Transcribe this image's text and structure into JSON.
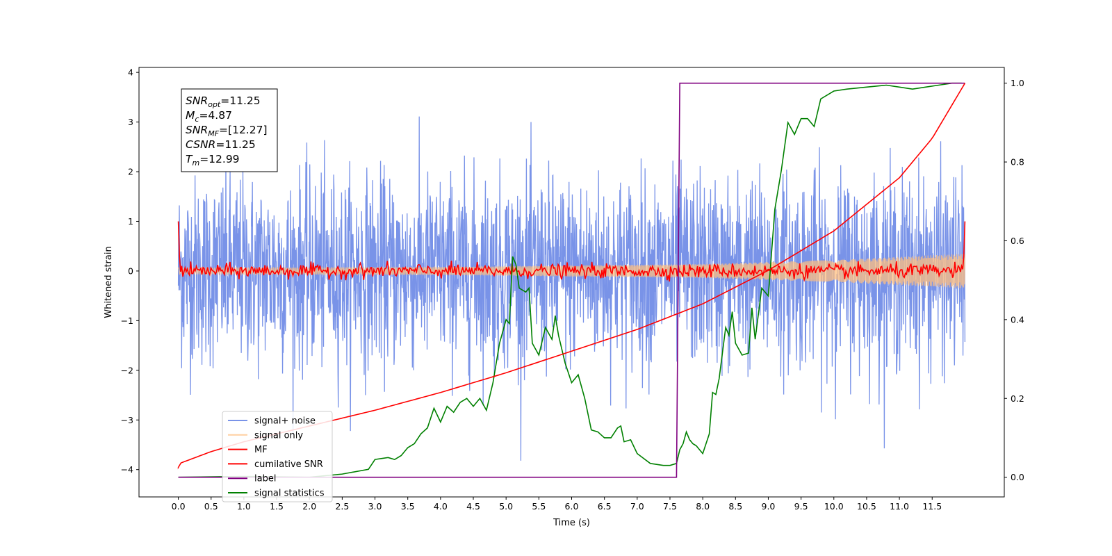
{
  "chart_data": {
    "type": "line",
    "xlabel": "Time (s)",
    "ylabel": "Whitened strain",
    "xlim": [
      -0.6,
      12.6
    ],
    "ylim": [
      -4.55,
      4.1
    ],
    "y2lim": [
      -0.05,
      1.04
    ],
    "xticks": [
      "0.0",
      "0.5",
      "1.0",
      "1.5",
      "2.0",
      "2.5",
      "3.0",
      "3.5",
      "4.0",
      "4.5",
      "5.0",
      "5.5",
      "6.0",
      "6.5",
      "7.0",
      "7.5",
      "8.0",
      "8.5",
      "9.0",
      "9.5",
      "10.0",
      "10.5",
      "11.0",
      "11.5"
    ],
    "yticks": [
      "4",
      "3",
      "2",
      "1",
      "0",
      "−1",
      "−2",
      "−3",
      "−4"
    ],
    "y2ticks": [
      "1.0",
      "0.8",
      "0.6",
      "0.4",
      "0.2",
      "0.0"
    ],
    "grid": false,
    "legend_position": "lower-left",
    "series": [
      {
        "name": "signal+ noise",
        "color": "#7993e8",
        "axis": "left",
        "kind": "noise",
        "x_range": [
          0,
          12
        ],
        "amplitude_sigma": 0.95,
        "peak_min": -4.15,
        "peak_max": 3.72
      },
      {
        "name": "signal only",
        "color": "#ffbf80",
        "axis": "left",
        "kind": "chirp",
        "x_range": [
          0,
          12
        ],
        "envelope": [
          [
            0,
            0.06
          ],
          [
            4,
            0.08
          ],
          [
            8,
            0.14
          ],
          [
            10,
            0.22
          ],
          [
            12,
            0.35
          ]
        ]
      },
      {
        "name": "MF",
        "color": "#ff0000",
        "axis": "left",
        "kind": "mf",
        "x_range": [
          0,
          12
        ],
        "start": 1.0,
        "end": 1.0,
        "baseline": 0.0
      },
      {
        "name": "cumilative SNR",
        "color": "#ff0000",
        "axis": "right",
        "points": [
          [
            0,
            0.025
          ],
          [
            0.02,
            0.035
          ],
          [
            0.5,
            0.065
          ],
          [
            1,
            0.09
          ],
          [
            2,
            0.13
          ],
          [
            3,
            0.17
          ],
          [
            4,
            0.215
          ],
          [
            5,
            0.265
          ],
          [
            6,
            0.32
          ],
          [
            7,
            0.375
          ],
          [
            8,
            0.44
          ],
          [
            9,
            0.525
          ],
          [
            10,
            0.625
          ],
          [
            11,
            0.76
          ],
          [
            11.5,
            0.86
          ],
          [
            12,
            1.0
          ]
        ]
      },
      {
        "name": "label",
        "color": "#800080",
        "axis": "right",
        "points": [
          [
            0,
            0.0
          ],
          [
            7.6,
            0.0
          ],
          [
            7.65,
            1.0
          ],
          [
            12,
            1.0
          ]
        ]
      },
      {
        "name": "signal statistics",
        "color": "#008000",
        "axis": "right",
        "points": [
          [
            0,
            0.0
          ],
          [
            1,
            0.002
          ],
          [
            2,
            0.0
          ],
          [
            2.5,
            0.008
          ],
          [
            2.9,
            0.02
          ],
          [
            3.0,
            0.045
          ],
          [
            3.2,
            0.05
          ],
          [
            3.3,
            0.045
          ],
          [
            3.4,
            0.055
          ],
          [
            3.5,
            0.075
          ],
          [
            3.6,
            0.085
          ],
          [
            3.7,
            0.11
          ],
          [
            3.8,
            0.125
          ],
          [
            3.9,
            0.175
          ],
          [
            4.0,
            0.14
          ],
          [
            4.1,
            0.18
          ],
          [
            4.2,
            0.165
          ],
          [
            4.3,
            0.19
          ],
          [
            4.4,
            0.2
          ],
          [
            4.5,
            0.18
          ],
          [
            4.6,
            0.2
          ],
          [
            4.7,
            0.17
          ],
          [
            4.8,
            0.24
          ],
          [
            4.9,
            0.34
          ],
          [
            5.0,
            0.4
          ],
          [
            5.05,
            0.39
          ],
          [
            5.1,
            0.56
          ],
          [
            5.15,
            0.54
          ],
          [
            5.2,
            0.48
          ],
          [
            5.3,
            0.47
          ],
          [
            5.35,
            0.48
          ],
          [
            5.4,
            0.34
          ],
          [
            5.5,
            0.31
          ],
          [
            5.6,
            0.38
          ],
          [
            5.7,
            0.35
          ],
          [
            5.75,
            0.41
          ],
          [
            5.8,
            0.36
          ],
          [
            5.9,
            0.29
          ],
          [
            6.0,
            0.24
          ],
          [
            6.1,
            0.26
          ],
          [
            6.2,
            0.2
          ],
          [
            6.3,
            0.12
          ],
          [
            6.4,
            0.115
          ],
          [
            6.5,
            0.1
          ],
          [
            6.6,
            0.1
          ],
          [
            6.7,
            0.125
          ],
          [
            6.75,
            0.13
          ],
          [
            6.8,
            0.09
          ],
          [
            6.9,
            0.095
          ],
          [
            7.0,
            0.06
          ],
          [
            7.2,
            0.035
          ],
          [
            7.4,
            0.03
          ],
          [
            7.5,
            0.03
          ],
          [
            7.6,
            0.035
          ],
          [
            7.65,
            0.07
          ],
          [
            7.7,
            0.085
          ],
          [
            7.75,
            0.115
          ],
          [
            7.8,
            0.095
          ],
          [
            7.85,
            0.085
          ],
          [
            7.9,
            0.08
          ],
          [
            8.0,
            0.06
          ],
          [
            8.1,
            0.11
          ],
          [
            8.15,
            0.215
          ],
          [
            8.2,
            0.21
          ],
          [
            8.25,
            0.25
          ],
          [
            8.35,
            0.38
          ],
          [
            8.4,
            0.36
          ],
          [
            8.45,
            0.42
          ],
          [
            8.5,
            0.34
          ],
          [
            8.6,
            0.31
          ],
          [
            8.7,
            0.315
          ],
          [
            8.75,
            0.43
          ],
          [
            8.8,
            0.35
          ],
          [
            8.9,
            0.48
          ],
          [
            9.0,
            0.46
          ],
          [
            9.1,
            0.68
          ],
          [
            9.2,
            0.78
          ],
          [
            9.3,
            0.9
          ],
          [
            9.4,
            0.87
          ],
          [
            9.5,
            0.91
          ],
          [
            9.6,
            0.91
          ],
          [
            9.7,
            0.89
          ],
          [
            9.8,
            0.96
          ],
          [
            9.9,
            0.97
          ],
          [
            10.0,
            0.98
          ],
          [
            10.2,
            0.985
          ],
          [
            10.5,
            0.99
          ],
          [
            10.8,
            0.995
          ],
          [
            11.0,
            0.99
          ],
          [
            11.2,
            0.985
          ],
          [
            11.4,
            0.99
          ],
          [
            11.6,
            0.995
          ],
          [
            11.8,
            1.0
          ],
          [
            11.95,
            1.0
          ]
        ]
      }
    ],
    "annotation": {
      "lines": [
        {
          "name": "SNR",
          "sub": "opt",
          "value": "=11.25"
        },
        {
          "name": "M",
          "sub": "c",
          "value": "=4.87"
        },
        {
          "name": "SNR",
          "sub": "MF",
          "value": "=[12.27]"
        },
        {
          "name": "CSNR",
          "sub": "",
          "value": "=11.25"
        },
        {
          "name": "T",
          "sub": "m",
          "value": "=12.99"
        }
      ]
    }
  }
}
